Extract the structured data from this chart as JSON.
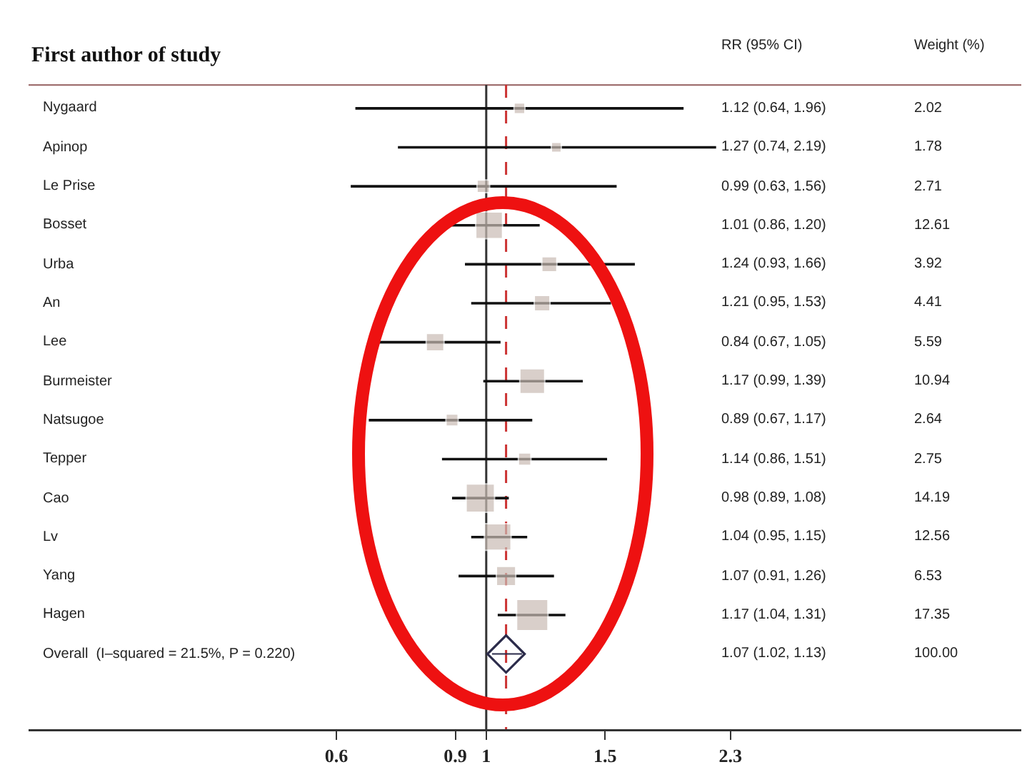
{
  "chart_data": [
    {
      "type": "bubble",
      "orientation": "horizontal",
      "ylabel": "First author of study",
      "categories": [
        "Nygaard",
        "Apinop",
        "Le Prise",
        "Bosset",
        "Urba",
        "An",
        "Lee",
        "Burmeister",
        "Natsugoe",
        "Tepper",
        "Cao",
        "Lv",
        "Yang",
        "Hagen",
        "Overall  (I–squared = 21.5%, P = 0.220)"
      ],
      "log": "x",
      "xlim": [
        0.21,
        6.2
      ],
      "xticks": [
        0.6,
        0.9,
        1.0,
        1.5,
        2.3
      ],
      "grid": false,
      "ref_lines": [
        {
          "axis": "x",
          "value": 1.0,
          "color": "#333333",
          "line_style": "solid"
        },
        {
          "axis": "x",
          "value": 1.07,
          "color": "#cc3333",
          "line_style": "dashed"
        }
      ],
      "series": [
        {
          "marker": "square",
          "color": "#c9bcb4",
          "values": [
            1.12,
            1.27,
            0.99,
            1.01,
            1.24,
            1.21,
            0.84,
            1.17,
            0.89,
            1.14,
            0.98,
            1.04,
            1.07,
            1.17,
            null
          ],
          "errors": [
            [
              0.64,
              1.96
            ],
            [
              0.74,
              2.19
            ],
            [
              0.63,
              1.56
            ],
            [
              0.86,
              1.2
            ],
            [
              0.93,
              1.66
            ],
            [
              0.95,
              1.53
            ],
            [
              0.67,
              1.05
            ],
            [
              0.99,
              1.39
            ],
            [
              0.67,
              1.17
            ],
            [
              0.86,
              1.51
            ],
            [
              0.89,
              1.08
            ],
            [
              0.95,
              1.15
            ],
            [
              0.91,
              1.26
            ],
            [
              1.04,
              1.31
            ],
            null
          ],
          "sizes": [
            0.12,
            0.1,
            0.16,
            0.73,
            0.23,
            0.25,
            0.32,
            0.63,
            0.15,
            0.16,
            0.82,
            0.72,
            0.38,
            1,
            null
          ]
        },
        {
          "type": "scatter",
          "marker": "diamond",
          "color": "#2b2b4a",
          "values": [
            null,
            null,
            null,
            null,
            null,
            null,
            null,
            null,
            null,
            null,
            null,
            null,
            null,
            null,
            1.07
          ],
          "errors": [
            null,
            null,
            null,
            null,
            null,
            null,
            null,
            null,
            null,
            null,
            null,
            null,
            null,
            null,
            [
              1.02,
              1.13
            ]
          ]
        }
      ]
    },
    {
      "type": "other",
      "title": "RR (95% CI)",
      "annotations": [
        "1.12 (0.64, 1.96)",
        "1.27 (0.74, 2.19)",
        "0.99 (0.63, 1.56)",
        "1.01 (0.86, 1.20)",
        "1.24 (0.93, 1.66)",
        "1.21 (0.95, 1.53)",
        "0.84 (0.67, 1.05)",
        "1.17 (0.99, 1.39)",
        "0.89 (0.67, 1.17)",
        "1.14 (0.86, 1.51)",
        "0.98 (0.89, 1.08)",
        "1.04 (0.95, 1.15)",
        "1.07 (0.91, 1.26)",
        "1.17 (1.04, 1.31)",
        "1.07 (1.02, 1.13)"
      ]
    },
    {
      "type": "other",
      "title": "Weight (%)",
      "annotations": [
        "2.02",
        "1.78",
        "2.71",
        "12.61",
        "3.92",
        "4.41",
        "5.59",
        "10.94",
        "2.64",
        "2.75",
        "14.19",
        "12.56",
        "6.53",
        "17.35",
        "100.00"
      ]
    }
  ]
}
